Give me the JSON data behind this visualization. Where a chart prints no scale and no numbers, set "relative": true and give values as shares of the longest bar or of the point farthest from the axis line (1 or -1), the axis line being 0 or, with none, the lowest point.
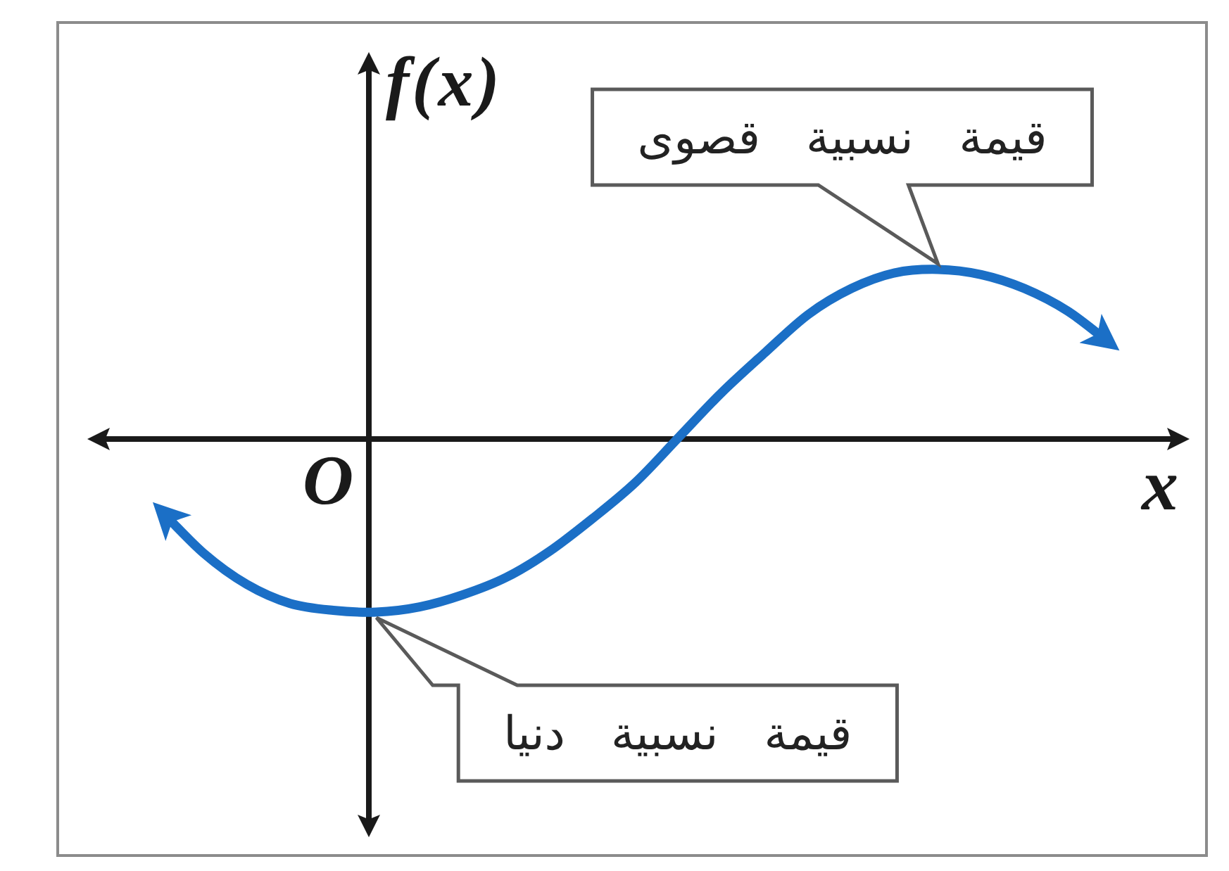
{
  "chart_data": {
    "type": "line",
    "relative": true,
    "xlabel": "x",
    "ylabel": "f(x)",
    "categories": [
      null,
      null,
      null,
      null,
      null,
      null,
      null,
      null,
      null,
      null,
      null,
      null,
      null,
      null,
      null,
      null,
      null,
      null,
      null,
      null,
      null,
      null,
      null
    ],
    "series": [
      {
        "color": "#1b6fc6",
        "values": [
          -0.41,
          -0.66,
          -0.84,
          -0.95,
          -0.99,
          -1,
          -0.97,
          -0.9,
          -0.8,
          -0.65,
          -0.46,
          -0.25,
          0.01,
          0.27,
          0.5,
          0.72,
          0.87,
          0.96,
          0.98,
          0.95,
          0.87,
          0.74,
          0.55
        ]
      }
    ],
    "annotations": [
      "O",
      "قيمة نسبية قصوى",
      "قيمة نسبية دنيا"
    ]
  }
}
